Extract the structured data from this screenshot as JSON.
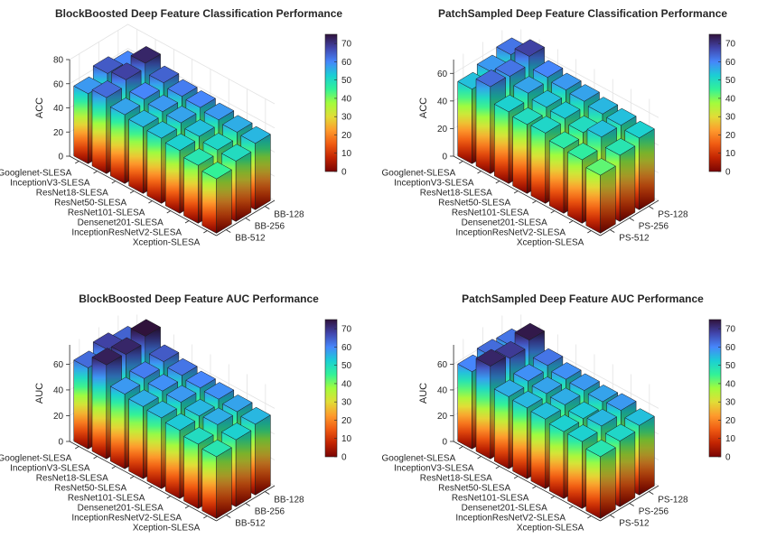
{
  "colors": {
    "colormap": [
      "#7a0403",
      "#c22402",
      "#f05b12",
      "#fe9b2d",
      "#e1dd37",
      "#a2fc3c",
      "#32f298",
      "#1bcfd4",
      "#4686fb",
      "#4145ab",
      "#30123b"
    ],
    "axis": "#262626",
    "grid": "#e3e3e3"
  },
  "colorbar_ticks": [
    "0",
    "10",
    "20",
    "30",
    "40",
    "50",
    "60",
    "70"
  ],
  "colorbar_range": [
    0,
    75
  ],
  "chart_data": [
    {
      "type": "bar3",
      "title": "BlockBoosted Deep Feature Classification Performance",
      "zlabel": "ACC",
      "ztick_labels": [
        "0",
        "20",
        "40",
        "60",
        "80"
      ],
      "zlim": [
        0,
        80
      ],
      "categories": [
        "Googlenet-SLESA",
        "InceptionV3-SLESA",
        "ResNet18-SLESA",
        "ResNet50-SLESA",
        "ResNet101-SLESA",
        "Densenet201-SLESA",
        "InceptionResNetV2-SLESA",
        "Xception-SLESA"
      ],
      "series": [
        {
          "name": "BB-512",
          "values": [
            58,
            63,
            57,
            55,
            54,
            52,
            48,
            45
          ]
        },
        {
          "name": "BB-256",
          "values": [
            65,
            68,
            60,
            58,
            57,
            54,
            51,
            50
          ]
        },
        {
          "name": "BB-128",
          "values": [
            60,
            72,
            64,
            61,
            60,
            58,
            56,
            55
          ]
        }
      ]
    },
    {
      "type": "bar3",
      "title": "PatchSampled Deep Feature Classification Performance",
      "zlabel": "ACC",
      "ztick_labels": [
        "0",
        "20",
        "40",
        "60"
      ],
      "zlim": [
        0,
        70
      ],
      "categories": [
        "Googlenet-SLESA",
        "InceptionV3-SLESA",
        "ResNet18-SLESA",
        "ResNet50-SLESA",
        "ResNet101-SLESA",
        "Densenet201-SLESA",
        "InceptionResNetV2-SLESA",
        "Xception-SLESA"
      ],
      "series": [
        {
          "name": "PS-512",
          "values": [
            54,
            63,
            52,
            50,
            51,
            47,
            46,
            42
          ]
        },
        {
          "name": "PS-256",
          "values": [
            58,
            62,
            57,
            54,
            53,
            50,
            54,
            48
          ]
        },
        {
          "name": "PS-128",
          "values": [
            62,
            68,
            60,
            58,
            57,
            55,
            54,
            52
          ]
        }
      ]
    },
    {
      "type": "bar3",
      "title": "BlockBoosted Deep Feature AUC Performance",
      "zlabel": "AUC",
      "ztick_labels": [
        "0",
        "20",
        "40",
        "60"
      ],
      "zlim": [
        0,
        75
      ],
      "categories": [
        "Googlenet-SLESA",
        "InceptionV3-SLESA",
        "ResNet18-SLESA",
        "ResNet50-SLESA",
        "ResNet101-SLESA",
        "Densenet201-SLESA",
        "InceptionResNetV2-SLESA",
        "Xception-SLESA"
      ],
      "series": [
        {
          "name": "BB-512",
          "values": [
            63,
            73,
            58,
            56,
            55,
            53,
            50,
            48
          ]
        },
        {
          "name": "BB-256",
          "values": [
            68,
            72,
            61,
            59,
            58,
            55,
            56,
            52
          ]
        },
        {
          "name": "BB-128",
          "values": [
            64,
            77,
            65,
            62,
            60,
            59,
            57,
            55
          ]
        }
      ]
    },
    {
      "type": "bar3",
      "title": "PatchSampled Deep Feature AUC Performance",
      "zlabel": "AUC",
      "ztick_labels": [
        "0",
        "20",
        "40",
        "60"
      ],
      "zlim": [
        0,
        75
      ],
      "categories": [
        "Googlenet-SLESA",
        "InceptionV3-SLESA",
        "ResNet18-SLESA",
        "ResNet50-SLESA",
        "ResNet101-SLESA",
        "Densenet201-SLESA",
        "InceptionResNetV2-SLESA",
        "Xception-SLESA"
      ],
      "series": [
        {
          "name": "PS-512",
          "values": [
            60,
            72,
            56,
            55,
            54,
            52,
            52,
            48
          ]
        },
        {
          "name": "PS-256",
          "values": [
            63,
            69,
            59,
            57,
            56,
            53,
            55,
            51
          ]
        },
        {
          "name": "PS-128",
          "values": [
            62,
            74,
            62,
            59,
            58,
            57,
            58,
            54
          ]
        }
      ]
    }
  ]
}
